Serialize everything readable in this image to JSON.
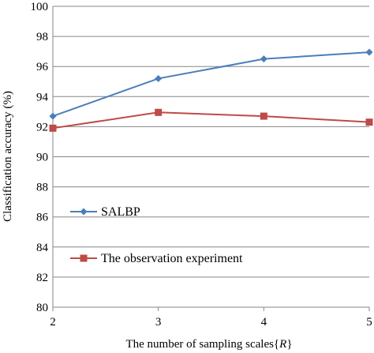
{
  "chart_data": {
    "type": "line",
    "xlabel": "The number of sampling scales{",
    "xlabel_var": "R",
    "xlabel_end": "}",
    "ylabel": "Classification accuracy (%)",
    "x": [
      2,
      3,
      4,
      5
    ],
    "xticks": [
      "2",
      "3",
      "4",
      "5"
    ],
    "ylim": [
      80,
      100
    ],
    "yticks": [
      "80",
      "82",
      "84",
      "86",
      "88",
      "90",
      "92",
      "94",
      "96",
      "98",
      "100"
    ],
    "grid": "horizontal",
    "legend_position": "lower-left",
    "series": [
      {
        "name": "SALBP",
        "values": [
          92.7,
          95.2,
          96.5,
          96.95
        ],
        "color": "#4a7ebb",
        "marker": "diamond"
      },
      {
        "name": "The observation experiment",
        "values": [
          91.9,
          92.95,
          92.7,
          92.3
        ],
        "color": "#be4b48",
        "marker": "square"
      }
    ]
  }
}
